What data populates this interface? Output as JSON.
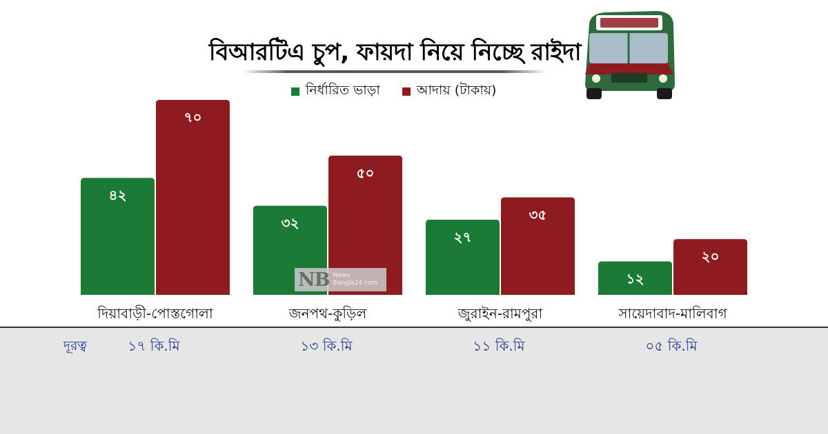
{
  "title": "বিআরটিএ চুপ, ফায়দা নিয়ে নিচ্ছে রাইদা",
  "legend": [
    {
      "label": "নির্ধারিত ভাড়া",
      "color": "#1b7a36"
    },
    {
      "label": "আদায় (টাকায়)",
      "color": "#8e1b20"
    }
  ],
  "watermark": {
    "logo": "NB",
    "text": "News\nBangla24.com"
  },
  "chart_data": {
    "type": "bar",
    "categories": [
      "দিয়াবাড়ী-পোস্তগোলা",
      "জনপথ-কুড়িল",
      "জুরাইন-রামপুরা",
      "সায়েদাবাদ-মালিবাগ"
    ],
    "series": [
      {
        "name": "নির্ধারিত ভাড়া",
        "values": [
          42,
          32,
          27,
          12
        ],
        "labels": [
          "৪২",
          "৩২",
          "২৭",
          "১২"
        ],
        "color": "#1b7a36"
      },
      {
        "name": "আদায় (টাকায়)",
        "values": [
          70,
          50,
          35,
          20
        ],
        "labels": [
          "৭০",
          "৫০",
          "৩৫",
          "২০"
        ],
        "color": "#8e1b20"
      }
    ],
    "title": "বিআরটিএ চুপ, ফায়দা নিয়ে নিচ্ছে রাইদা",
    "xlabel": "",
    "ylabel": "",
    "ylim": [
      0,
      70
    ],
    "grid": false,
    "legend_position": "top-center"
  },
  "distance": {
    "label": "দূরত্ব",
    "values": [
      "১৭ কি.মি",
      "১৩ কি.মি",
      "১১ কি.মি",
      "০৫ কি.মি"
    ]
  }
}
